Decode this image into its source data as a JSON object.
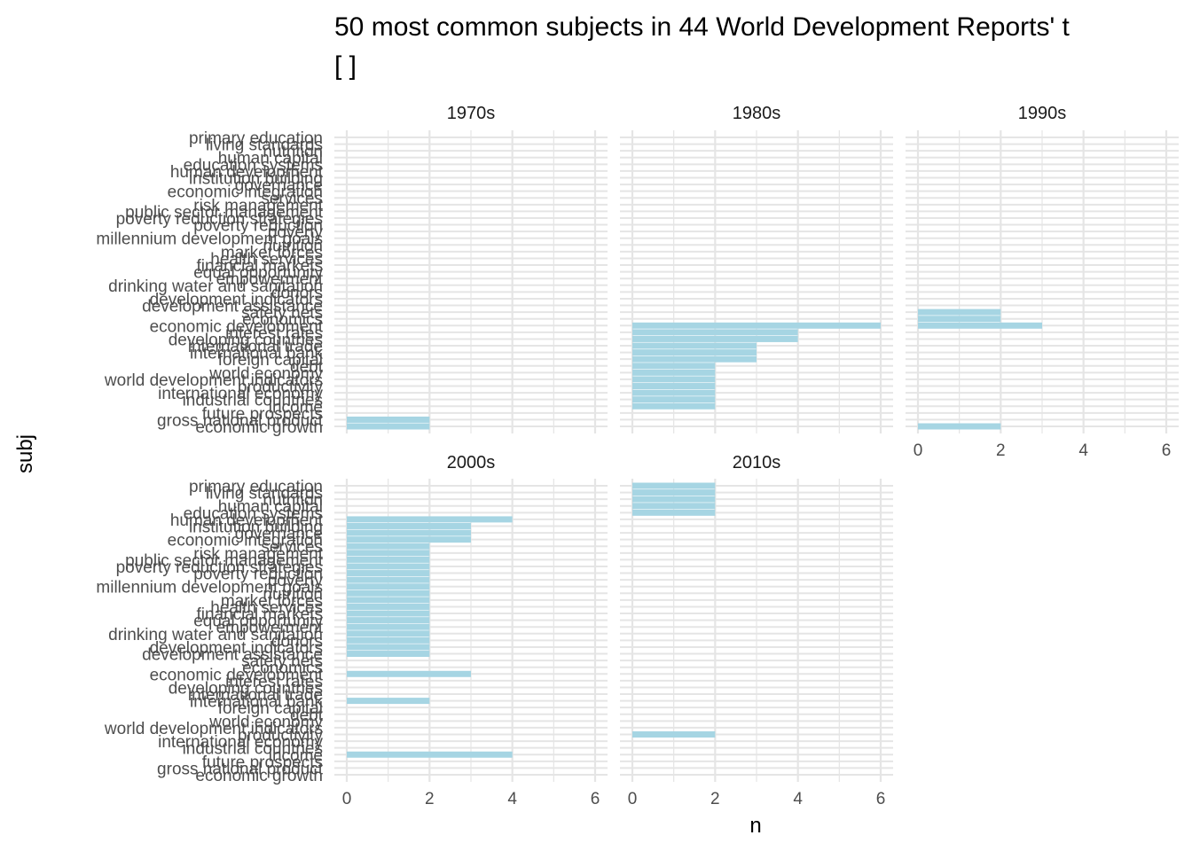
{
  "chart_data": {
    "type": "bar",
    "orientation": "horizontal",
    "title": "50 most common subjects in 44 World Development Reports' t",
    "subtitle": "[ ]",
    "xlabel": "n",
    "ylabel": "subj",
    "xlim": [
      0,
      6
    ],
    "x_ticks": [
      0,
      2,
      4,
      6
    ],
    "grid": true,
    "bar_color": "#a6d5e3",
    "grid_color": "#e5e5e5",
    "facets": [
      "1970s",
      "1980s",
      "1990s",
      "2000s",
      "2010s"
    ],
    "categories": [
      "primary education",
      "living standards",
      "nutrition",
      "human capital",
      "education systems",
      "human development",
      "institution building",
      "governance",
      "economic integration",
      "services",
      "risk management",
      "public sector management",
      "poverty reduction strategies",
      "poverty reduction",
      "poverty",
      "millennium development goals",
      "nutrition",
      "market forces",
      "health services",
      "financial markets",
      "equal opportunity",
      "empowerment",
      "drinking water and sanitation",
      "donors",
      "development indicators",
      "development assistance",
      "safety nets",
      "economics",
      "economic development",
      "interest rates",
      "developing countries",
      "international trade",
      "international bank",
      "foreign capital",
      "debt",
      "world economy",
      "world development indicators",
      "productivity",
      "international economy",
      "industrial countries",
      "income",
      "future prospects",
      "gross national product",
      "economic growth"
    ],
    "series": [
      {
        "name": "1970s",
        "values": [
          0,
          0,
          0,
          0,
          0,
          0,
          0,
          0,
          0,
          0,
          0,
          0,
          0,
          0,
          0,
          0,
          0,
          0,
          0,
          0,
          0,
          0,
          0,
          0,
          0,
          0,
          0,
          0,
          0,
          0,
          0,
          0,
          0,
          0,
          0,
          0,
          0,
          0,
          0,
          0,
          0,
          0,
          2,
          2
        ]
      },
      {
        "name": "1980s",
        "values": [
          0,
          0,
          0,
          0,
          0,
          0,
          0,
          0,
          0,
          0,
          0,
          0,
          0,
          0,
          0,
          0,
          0,
          0,
          0,
          0,
          0,
          0,
          0,
          0,
          0,
          0,
          0,
          0,
          6,
          4,
          4,
          3,
          3,
          3,
          2,
          2,
          2,
          2,
          2,
          2,
          2,
          0,
          0,
          0
        ]
      },
      {
        "name": "1990s",
        "values": [
          0,
          0,
          0,
          0,
          0,
          0,
          0,
          0,
          0,
          0,
          0,
          0,
          0,
          0,
          0,
          0,
          0,
          0,
          0,
          0,
          0,
          0,
          0,
          0,
          0,
          0,
          2,
          2,
          3,
          0,
          0,
          0,
          0,
          0,
          0,
          0,
          0,
          0,
          0,
          0,
          0,
          0,
          0,
          2
        ]
      },
      {
        "name": "2000s",
        "values": [
          0,
          0,
          0,
          0,
          0,
          4,
          3,
          3,
          3,
          2,
          2,
          2,
          2,
          2,
          2,
          2,
          2,
          2,
          2,
          2,
          2,
          2,
          2,
          2,
          2,
          2,
          0,
          0,
          3,
          0,
          0,
          0,
          2,
          0,
          0,
          0,
          0,
          0,
          0,
          0,
          4,
          0,
          0,
          0
        ]
      },
      {
        "name": "2010s",
        "values": [
          2,
          2,
          2,
          2,
          2,
          0,
          0,
          0,
          0,
          0,
          0,
          0,
          0,
          0,
          0,
          0,
          0,
          0,
          0,
          0,
          0,
          0,
          0,
          0,
          0,
          0,
          0,
          0,
          0,
          0,
          0,
          0,
          0,
          0,
          0,
          0,
          0,
          2,
          0,
          0,
          0,
          0,
          0,
          0
        ]
      }
    ]
  }
}
